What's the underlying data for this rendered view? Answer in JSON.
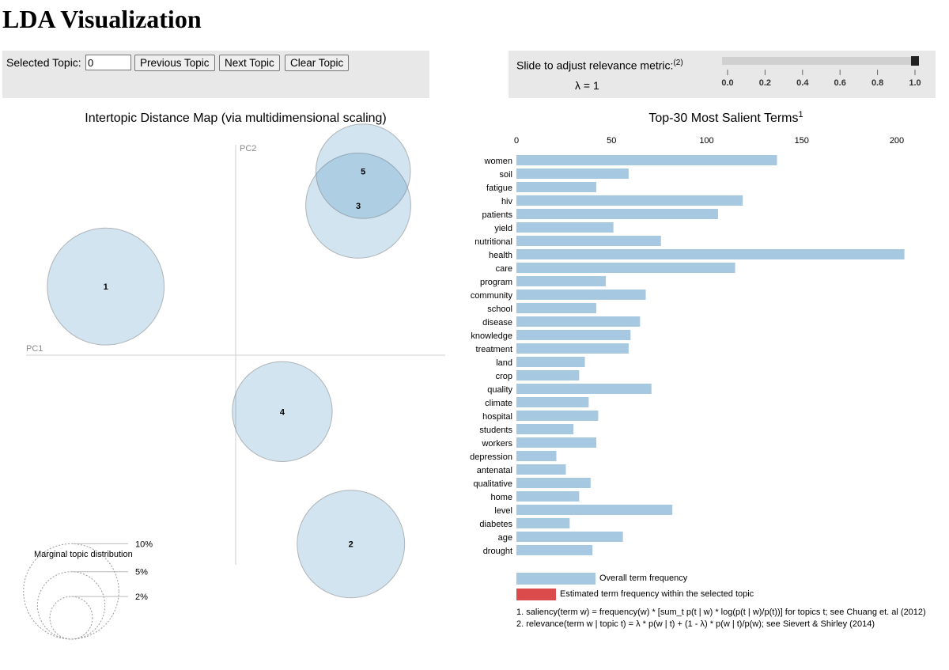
{
  "page": {
    "title": "LDA Visualization"
  },
  "controls": {
    "selected_topic_label": "Selected Topic:",
    "selected_topic_value": "0",
    "prev_label": "Previous Topic",
    "next_label": "Next Topic",
    "clear_label": "Clear Topic",
    "lambda_label": "Slide to adjust relevance metric:",
    "lambda_note": "(2)",
    "lambda_display": "λ = 1",
    "lambda_value": 1.0,
    "lambda_ticks": [
      "0.0",
      "0.2",
      "0.4",
      "0.6",
      "0.8",
      "1.0"
    ]
  },
  "chart_data": [
    {
      "type": "scatter",
      "title": "Intertopic Distance Map (via multidimensional scaling)",
      "xlabel": "PC1",
      "ylabel": "PC2",
      "grid": false,
      "topics": [
        {
          "topic": "1",
          "pc1": -0.265,
          "pc2": 0.14,
          "marginal_pct": 13.0
        },
        {
          "topic": "2",
          "pc1": 0.235,
          "pc2": -0.385,
          "marginal_pct": 11.0
        },
        {
          "topic": "3",
          "pc1": 0.25,
          "pc2": 0.305,
          "marginal_pct": 10.5
        },
        {
          "topic": "4",
          "pc1": 0.095,
          "pc2": -0.115,
          "marginal_pct": 9.5
        },
        {
          "topic": "5",
          "pc1": 0.26,
          "pc2": 0.375,
          "marginal_pct": 8.5
        }
      ],
      "legend": {
        "title": "Marginal topic distribution",
        "items": [
          {
            "label": "2%",
            "pct": 2
          },
          {
            "label": "5%",
            "pct": 5
          },
          {
            "label": "10%",
            "pct": 10
          }
        ]
      }
    },
    {
      "type": "bar",
      "orientation": "horizontal",
      "title": "Top-30 Most Salient Terms",
      "title_note": "1",
      "xlim": [
        0,
        210
      ],
      "xticks": [
        0,
        50,
        100,
        150,
        200
      ],
      "categories": [
        "women",
        "soil",
        "fatigue",
        "hiv",
        "patients",
        "yield",
        "nutritional",
        "health",
        "care",
        "program",
        "community",
        "school",
        "disease",
        "knowledge",
        "treatment",
        "land",
        "crop",
        "quality",
        "climate",
        "hospital",
        "students",
        "workers",
        "depression",
        "antenatal",
        "qualitative",
        "home",
        "level",
        "diabetes",
        "age",
        "drought"
      ],
      "series": [
        {
          "name": "Overall term frequency",
          "color": "#a6c8e0",
          "values": [
            137,
            59,
            42,
            119,
            106,
            51,
            76,
            204,
            115,
            47,
            68,
            42,
            65,
            60,
            59,
            36,
            33,
            71,
            38,
            43,
            30,
            42,
            21,
            26,
            39,
            33,
            82,
            28,
            56,
            40
          ]
        }
      ],
      "legend": [
        {
          "label": "Overall term frequency",
          "color": "#a6c8e0"
        },
        {
          "label": "Estimated term frequency within the selected topic",
          "color": "#dc4b4b"
        }
      ],
      "footnotes": [
        "1. saliency(term w) = frequency(w) * [sum_t p(t | w) * log(p(t | w)/p(t))] for topics t; see Chuang et. al (2012)",
        "2. relevance(term w | topic t) = λ * p(w | t) + (1 - λ) * p(w | t)/p(w); see Sievert & Shirley (2014)"
      ]
    }
  ]
}
